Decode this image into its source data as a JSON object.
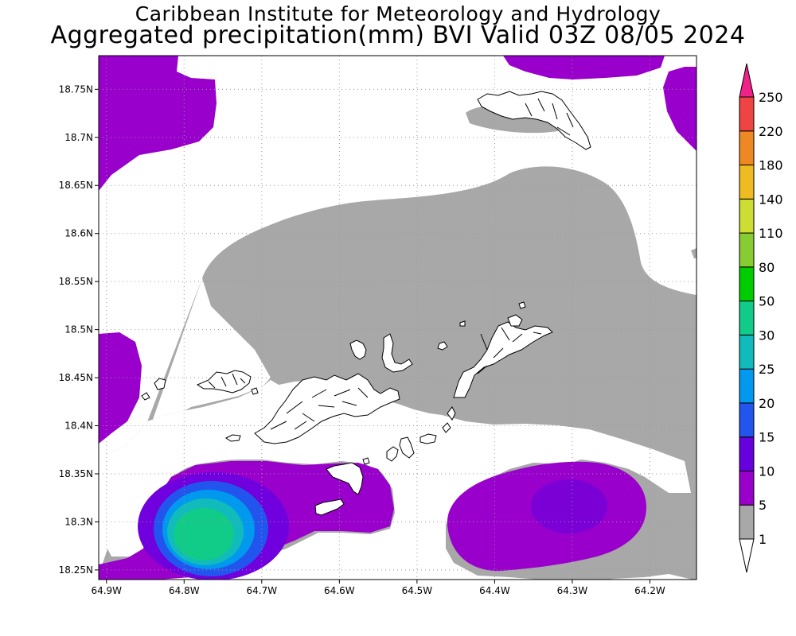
{
  "header": {
    "line1": "Caribbean Institute for Meteorology and Hydrology",
    "line2": "Aggregated precipitation(mm) BVI Valid 03Z 08/05 2024"
  },
  "map": {
    "lon_range": [
      -64.91,
      -64.14
    ],
    "lat_range": [
      18.24,
      18.785
    ],
    "x_ticks": [
      {
        "v": -64.9,
        "label": "64.9W"
      },
      {
        "v": -64.8,
        "label": "64.8W"
      },
      {
        "v": -64.7,
        "label": "64.7W"
      },
      {
        "v": -64.6,
        "label": "64.6W"
      },
      {
        "v": -64.5,
        "label": "64.5W"
      },
      {
        "v": -64.4,
        "label": "64.4W"
      },
      {
        "v": -64.3,
        "label": "64.3W"
      },
      {
        "v": -64.2,
        "label": "64.2W"
      }
    ],
    "y_ticks": [
      {
        "v": 18.25,
        "label": "18.25N"
      },
      {
        "v": 18.3,
        "label": "18.3N"
      },
      {
        "v": 18.35,
        "label": "18.35N"
      },
      {
        "v": 18.4,
        "label": "18.4N"
      },
      {
        "v": 18.45,
        "label": "18.45N"
      },
      {
        "v": 18.5,
        "label": "18.5N"
      },
      {
        "v": 18.55,
        "label": "18.55N"
      },
      {
        "v": 18.6,
        "label": "18.6N"
      },
      {
        "v": 18.65,
        "label": "18.65N"
      },
      {
        "v": 18.7,
        "label": "18.7N"
      },
      {
        "v": 18.75,
        "label": "18.75N"
      }
    ],
    "grid": true
  },
  "legend": {
    "labels": [
      "1",
      "5",
      "10",
      "15",
      "20",
      "25",
      "30",
      "50",
      "80",
      "110",
      "140",
      "180",
      "220",
      "250"
    ],
    "colors": [
      "#ffffff",
      "#a8a8a8",
      "#9900cc",
      "#6600dd",
      "#2255ee",
      "#0099ee",
      "#11bbbb",
      "#11cc88",
      "#00cc00",
      "#88cc33",
      "#ccdd33",
      "#eebb22",
      "#ee8822",
      "#ee4444",
      "#ee2288"
    ]
  },
  "colors": {
    "gray": "#a8a8a8",
    "purple": "#9900cc",
    "violet": "#7a00d6",
    "blue": "#2255ee",
    "skyblue": "#0099ee",
    "teal": "#11bbbb",
    "green": "#11cc88"
  }
}
